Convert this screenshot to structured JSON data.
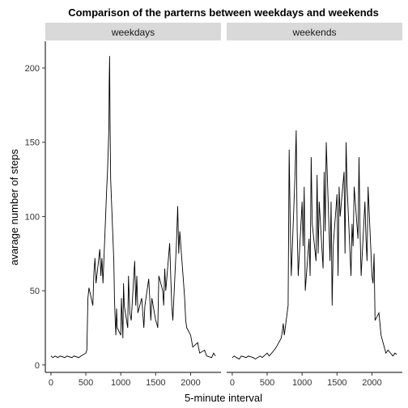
{
  "chart_data": {
    "type": "line",
    "title": "Comparison of the parterns between weekdays and weekends",
    "xlabel": "5-minute interval",
    "ylabel": "avarage number of steps",
    "facet_layout": "1 row, 2 columns, shared y axis",
    "xlim": [
      -80,
      2435
    ],
    "ylim": [
      -5,
      218
    ],
    "x_ticks": [
      0,
      500,
      1000,
      1500,
      2000
    ],
    "y_ticks": [
      0,
      50,
      100,
      150,
      200
    ],
    "grid": false,
    "legend": "none",
    "line_color": "#000000",
    "strip_fill": "#d9d9d9",
    "panels": [
      {
        "name": "weekdays",
        "x": [
          0,
          30,
          60,
          100,
          130,
          200,
          230,
          300,
          330,
          400,
          430,
          500,
          515,
          530,
          545,
          600,
          615,
          630,
          645,
          700,
          715,
          730,
          745,
          800,
          810,
          820,
          830,
          835,
          840,
          845,
          850,
          855,
          900,
          910,
          920,
          930,
          940,
          950,
          1000,
          1010,
          1020,
          1030,
          1040,
          1050,
          1100,
          1110,
          1130,
          1150,
          1200,
          1215,
          1230,
          1245,
          1300,
          1315,
          1330,
          1345,
          1400,
          1415,
          1430,
          1445,
          1500,
          1515,
          1530,
          1545,
          1600,
          1615,
          1630,
          1645,
          1700,
          1715,
          1730,
          1745,
          1800,
          1815,
          1830,
          1845,
          1900,
          1915,
          1930,
          1945,
          2000,
          2030,
          2100,
          2130,
          2200,
          2230,
          2300,
          2330,
          2355
        ],
        "y": [
          6,
          5,
          6,
          5,
          6,
          5,
          6,
          5,
          6,
          5,
          6,
          8,
          10,
          45,
          52,
          40,
          62,
          72,
          55,
          78,
          60,
          72,
          55,
          120,
          130,
          145,
          160,
          190,
          208,
          175,
          150,
          125,
          70,
          45,
          30,
          20,
          38,
          25,
          20,
          45,
          32,
          18,
          55,
          40,
          25,
          60,
          35,
          30,
          70,
          40,
          60,
          35,
          45,
          35,
          25,
          40,
          58,
          45,
          30,
          45,
          30,
          28,
          25,
          60,
          50,
          40,
          65,
          50,
          82,
          60,
          40,
          30,
          85,
          107,
          75,
          90,
          55,
          45,
          30,
          25,
          20,
          12,
          15,
          8,
          10,
          6,
          5,
          8,
          6
        ]
      },
      {
        "name": "weekends",
        "x": [
          0,
          30,
          60,
          100,
          130,
          200,
          230,
          300,
          330,
          400,
          430,
          500,
          530,
          600,
          630,
          700,
          715,
          730,
          745,
          800,
          815,
          830,
          845,
          900,
          915,
          930,
          945,
          1000,
          1015,
          1030,
          1045,
          1100,
          1115,
          1130,
          1145,
          1200,
          1215,
          1230,
          1245,
          1300,
          1315,
          1330,
          1345,
          1400,
          1415,
          1430,
          1445,
          1500,
          1515,
          1530,
          1545,
          1600,
          1615,
          1630,
          1645,
          1700,
          1715,
          1730,
          1745,
          1800,
          1815,
          1830,
          1845,
          1900,
          1915,
          1930,
          1945,
          2000,
          2015,
          2030,
          2045,
          2100,
          2130,
          2200,
          2230,
          2300,
          2330,
          2355
        ],
        "y": [
          5,
          6,
          5,
          4,
          6,
          5,
          6,
          5,
          4,
          6,
          5,
          8,
          6,
          10,
          12,
          18,
          22,
          28,
          20,
          40,
          145,
          95,
          60,
          130,
          158,
          90,
          60,
          110,
          80,
          120,
          50,
          85,
          60,
          140,
          95,
          70,
          128,
          75,
          110,
          65,
          130,
          90,
          150,
          70,
          110,
          40,
          80,
          115,
          60,
          120,
          100,
          130,
          75,
          150,
          120,
          60,
          95,
          80,
          120,
          85,
          140,
          90,
          60,
          110,
          85,
          70,
          120,
          60,
          55,
          75,
          30,
          35,
          20,
          8,
          10,
          6,
          8,
          7
        ]
      }
    ]
  }
}
